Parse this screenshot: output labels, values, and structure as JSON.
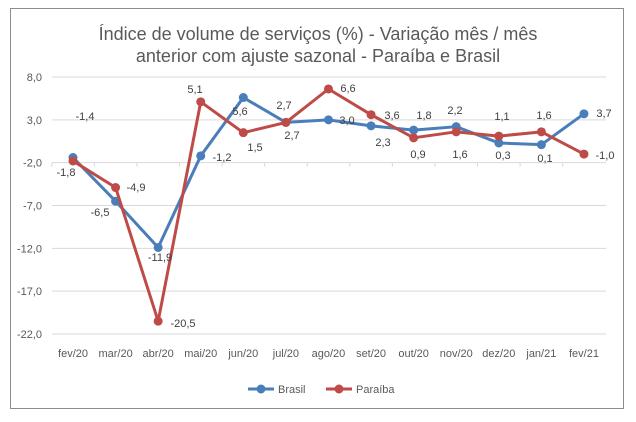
{
  "chart_data": {
    "type": "line",
    "title_lines": [
      "Índice de volume de serviços (%) - Variação mês / mês",
      "anterior com ajuste sazonal - Paraíba e Brasil"
    ],
    "categories": [
      "fev/20",
      "mar/20",
      "abr/20",
      "mai/20",
      "jun/20",
      "jul/20",
      "ago/20",
      "set/20",
      "out/20",
      "nov/20",
      "dez/20",
      "jan/21",
      "fev/21"
    ],
    "y_ticks": [
      "8,0",
      "3,0",
      "-2,0",
      "-7,0",
      "-12,0",
      "-17,0",
      "-22,0"
    ],
    "ylim": [
      -22,
      8
    ],
    "grid": true,
    "legend_position": "bottom",
    "series": [
      {
        "name": "Brasil",
        "color": "#4a7ebb",
        "values": [
          -1.4,
          -6.5,
          -11.9,
          -1.2,
          5.6,
          2.7,
          3.0,
          2.3,
          1.8,
          2.2,
          0.3,
          0.1,
          3.7
        ],
        "labels": [
          "-1,4",
          "-6,5",
          "-11,9",
          "-1,2",
          "5,6",
          "2,7",
          "3,0",
          "2,3",
          "1,8",
          "2,2",
          "0,3",
          "0,1",
          "3,7"
        ]
      },
      {
        "name": "Paraíba",
        "color": "#be4b48",
        "values": [
          -1.8,
          -4.9,
          -20.5,
          5.1,
          1.5,
          2.7,
          6.6,
          3.6,
          0.9,
          1.6,
          1.1,
          1.6,
          -1.0
        ],
        "labels": [
          "-1,8",
          "-4,9",
          "-20,5",
          "5,1",
          "1,5",
          "2,7",
          "6,6",
          "3,6",
          "0,9",
          "1,6",
          "1,1",
          "1,6",
          "-1,0"
        ]
      }
    ]
  }
}
